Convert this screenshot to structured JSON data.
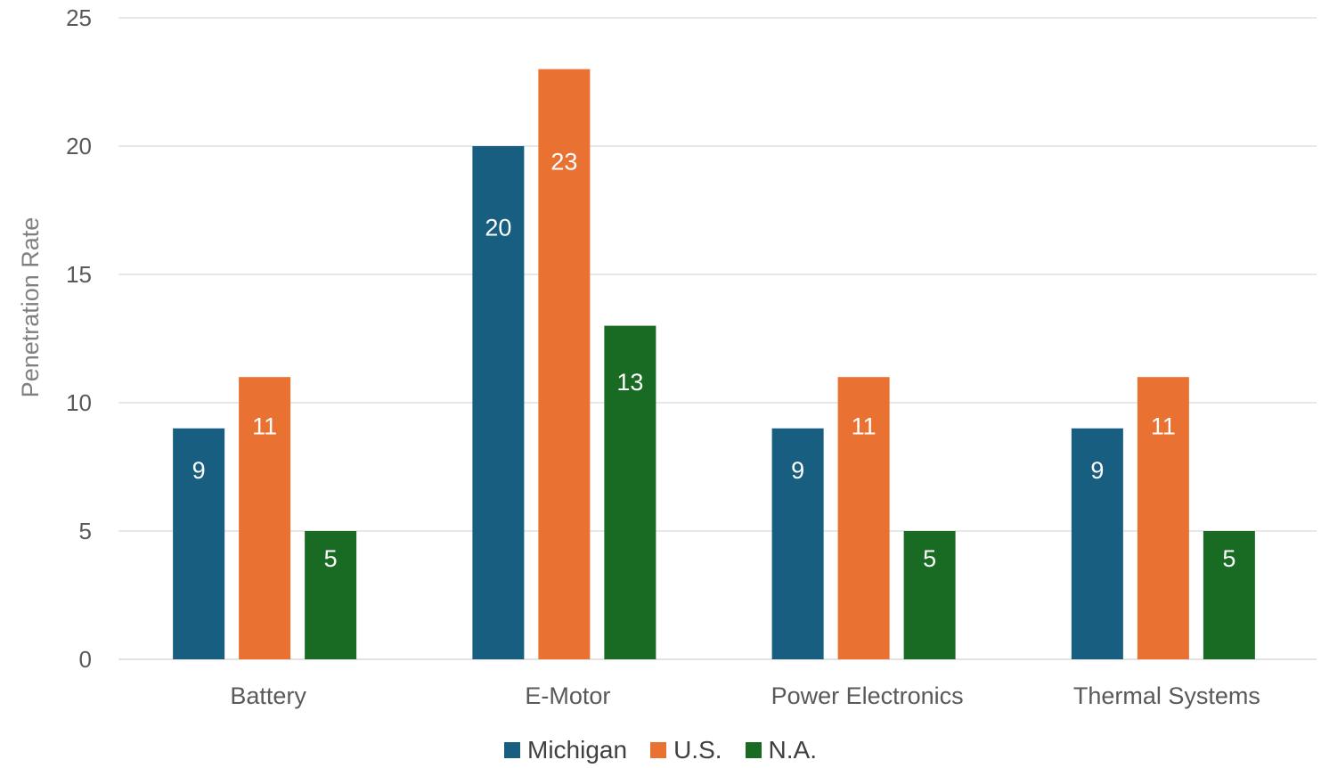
{
  "chart_data": {
    "type": "bar",
    "title": "",
    "xlabel": "",
    "ylabel": "Penetration Rate",
    "ylim": [
      0,
      25
    ],
    "yticks": [
      0,
      5,
      10,
      15,
      20,
      25
    ],
    "grid": true,
    "legend_position": "bottom",
    "categories": [
      "Battery",
      "E-Motor",
      "Power Electronics",
      "Thermal Systems"
    ],
    "series": [
      {
        "name": "Michigan",
        "color": "#175E80",
        "values": [
          9,
          20,
          9,
          9
        ]
      },
      {
        "name": "U.S.",
        "color": "#E97132",
        "values": [
          11,
          23,
          11,
          11
        ]
      },
      {
        "name": "N.A.",
        "color": "#196B24",
        "values": [
          5,
          13,
          5,
          5
        ]
      }
    ],
    "data_label_color": "#ffffff",
    "axis_text_color": "#595959",
    "gridline_color": "#D9D9D9"
  }
}
